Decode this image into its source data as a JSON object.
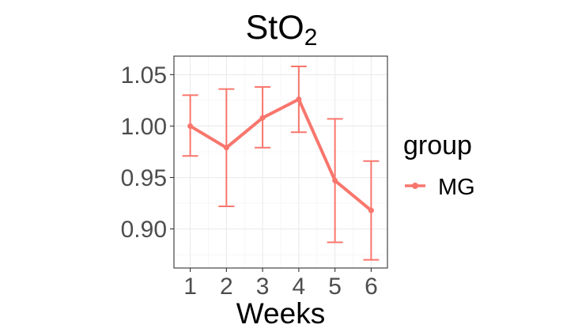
{
  "chart_data": {
    "type": "line",
    "title": "StO",
    "title_subscript": "2",
    "xlabel": "Weeks",
    "ylabel": "",
    "x": [
      1,
      2,
      3,
      4,
      5,
      6
    ],
    "x_ticks": [
      "1",
      "2",
      "3",
      "4",
      "5",
      "6"
    ],
    "y_ticks": [
      "0.90",
      "0.95",
      "1.00",
      "1.05"
    ],
    "ylim": [
      0.862,
      1.068
    ],
    "xlim": [
      0.55,
      6.45
    ],
    "grid": true,
    "legend": {
      "title": "group",
      "position": "right"
    },
    "series": [
      {
        "name": "MG",
        "color": "#F8766D",
        "values": [
          1.0,
          0.979,
          1.008,
          1.026,
          0.947,
          0.918
        ],
        "error_low": [
          0.971,
          0.922,
          0.979,
          0.994,
          0.887,
          0.87
        ],
        "error_high": [
          1.03,
          1.036,
          1.038,
          1.058,
          1.007,
          0.966
        ]
      }
    ]
  }
}
